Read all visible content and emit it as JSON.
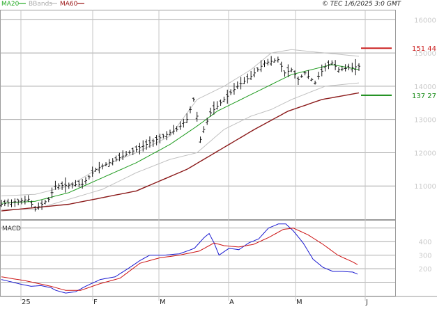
{
  "header": {
    "legend": [
      {
        "label": "MA20",
        "color": "#22aa22"
      },
      {
        "label": "BBands",
        "color": "#bbbbbb"
      },
      {
        "label": "MA60",
        "color": "#991111"
      }
    ],
    "watermark": "© TEC 1/6/2025 3:0 GMT"
  },
  "chart_data": [
    {
      "type": "line",
      "subtype": "ohlc-bars-with-overlays",
      "xlabel": "",
      "ylabel": "",
      "x_tick_labels": [
        "25",
        "F",
        "M",
        "A",
        "M",
        "J"
      ],
      "y_tick_labels": [
        "11000",
        "12000",
        "13000",
        "14000",
        "15000",
        "16000"
      ],
      "ylim": [
        10000,
        16300
      ],
      "grid": true,
      "axis_position": "right",
      "annotations": [
        {
          "label": "151 44",
          "value": 15144,
          "color": "#cc2222"
        },
        {
          "label": "137 27",
          "value": 13727,
          "color": "#118811"
        }
      ],
      "n_bars": 107,
      "ohlc_anchors_close": [
        [
          0,
          10450
        ],
        [
          8,
          10600
        ],
        [
          10,
          10300
        ],
        [
          14,
          10600
        ],
        [
          16,
          11000
        ],
        [
          24,
          11050
        ],
        [
          28,
          11500
        ],
        [
          32,
          11700
        ],
        [
          36,
          11900
        ],
        [
          40,
          12100
        ],
        [
          44,
          12300
        ],
        [
          48,
          12500
        ],
        [
          52,
          12700
        ],
        [
          55,
          13000
        ],
        [
          57,
          13600
        ],
        [
          58,
          13100
        ],
        [
          59,
          12400
        ],
        [
          60,
          12700
        ],
        [
          62,
          13200
        ],
        [
          66,
          13600
        ],
        [
          70,
          14000
        ],
        [
          74,
          14300
        ],
        [
          78,
          14700
        ],
        [
          82,
          14800
        ],
        [
          84,
          14400
        ],
        [
          86,
          14500
        ],
        [
          88,
          14200
        ],
        [
          90,
          14400
        ],
        [
          92,
          14200
        ],
        [
          93,
          14100
        ],
        [
          94,
          14300
        ],
        [
          96,
          14600
        ],
        [
          98,
          14700
        ],
        [
          100,
          14500
        ],
        [
          106,
          14600
        ]
      ],
      "ma20_anchors": [
        [
          0,
          10480
        ],
        [
          10,
          10540
        ],
        [
          20,
          10800
        ],
        [
          30,
          11250
        ],
        [
          40,
          11700
        ],
        [
          50,
          12250
        ],
        [
          58,
          12800
        ],
        [
          64,
          13250
        ],
        [
          72,
          13650
        ],
        [
          80,
          14050
        ],
        [
          86,
          14350
        ],
        [
          92,
          14500
        ],
        [
          98,
          14650
        ],
        [
          106,
          14500
        ]
      ],
      "ma60_anchors": [
        [
          0,
          10250
        ],
        [
          20,
          10450
        ],
        [
          40,
          10850
        ],
        [
          55,
          11500
        ],
        [
          65,
          12100
        ],
        [
          75,
          12700
        ],
        [
          85,
          13250
        ],
        [
          95,
          13600
        ],
        [
          106,
          13800
        ]
      ],
      "bbands_upper_anchors": [
        [
          0,
          10700
        ],
        [
          10,
          10750
        ],
        [
          20,
          11000
        ],
        [
          30,
          11600
        ],
        [
          40,
          12000
        ],
        [
          50,
          12500
        ],
        [
          58,
          13600
        ],
        [
          66,
          14000
        ],
        [
          74,
          14500
        ],
        [
          80,
          15000
        ],
        [
          86,
          15100
        ],
        [
          96,
          15000
        ],
        [
          106,
          14900
        ]
      ],
      "bbands_lower_anchors": [
        [
          0,
          10300
        ],
        [
          10,
          10300
        ],
        [
          20,
          10600
        ],
        [
          30,
          10900
        ],
        [
          40,
          11400
        ],
        [
          50,
          11800
        ],
        [
          58,
          12000
        ],
        [
          66,
          12700
        ],
        [
          74,
          13100
        ],
        [
          80,
          13300
        ],
        [
          86,
          13600
        ],
        [
          96,
          14000
        ],
        [
          106,
          14100
        ]
      ]
    },
    {
      "type": "line",
      "title": "MACD",
      "xlabel": "",
      "ylabel": "",
      "y_tick_labels": [
        "200",
        "300",
        "400"
      ],
      "ylim": [
        0,
        560
      ],
      "grid": true,
      "axis_position": "right",
      "series": [
        {
          "color": "#1a1ad0",
          "anchors": [
            [
              0,
              120
            ],
            [
              8,
              85
            ],
            [
              12,
              70
            ],
            [
              16,
              75
            ],
            [
              20,
              60
            ],
            [
              22,
              40
            ],
            [
              26,
              20
            ],
            [
              30,
              30
            ],
            [
              34,
              70
            ],
            [
              40,
              120
            ],
            [
              46,
              140
            ],
            [
              52,
              210
            ],
            [
              56,
              260
            ],
            [
              60,
              300
            ],
            [
              66,
              300
            ],
            [
              72,
              310
            ],
            [
              78,
              350
            ],
            [
              82,
              430
            ],
            [
              84,
              460
            ],
            [
              86,
              390
            ],
            [
              88,
              300
            ],
            [
              92,
              350
            ],
            [
              96,
              340
            ],
            [
              100,
              390
            ],
            [
              104,
              420
            ],
            [
              108,
              500
            ],
            [
              112,
              530
            ],
            [
              115,
              530
            ],
            [
              118,
              480
            ],
            [
              122,
              390
            ],
            [
              126,
              270
            ],
            [
              130,
              210
            ],
            [
              134,
              180
            ],
            [
              138,
              180
            ],
            [
              142,
              175
            ],
            [
              144,
              160
            ]
          ]
        },
        {
          "color": "#cc1111",
          "anchors": [
            [
              0,
              140
            ],
            [
              10,
              110
            ],
            [
              20,
              70
            ],
            [
              26,
              40
            ],
            [
              32,
              40
            ],
            [
              40,
              90
            ],
            [
              48,
              130
            ],
            [
              56,
              240
            ],
            [
              64,
              280
            ],
            [
              72,
              300
            ],
            [
              80,
              330
            ],
            [
              86,
              390
            ],
            [
              90,
              370
            ],
            [
              96,
              360
            ],
            [
              102,
              380
            ],
            [
              108,
              430
            ],
            [
              114,
              490
            ],
            [
              118,
              500
            ],
            [
              124,
              450
            ],
            [
              130,
              380
            ],
            [
              136,
              300
            ],
            [
              142,
              250
            ],
            [
              144,
              230
            ]
          ]
        }
      ],
      "n_points": 145
    }
  ]
}
